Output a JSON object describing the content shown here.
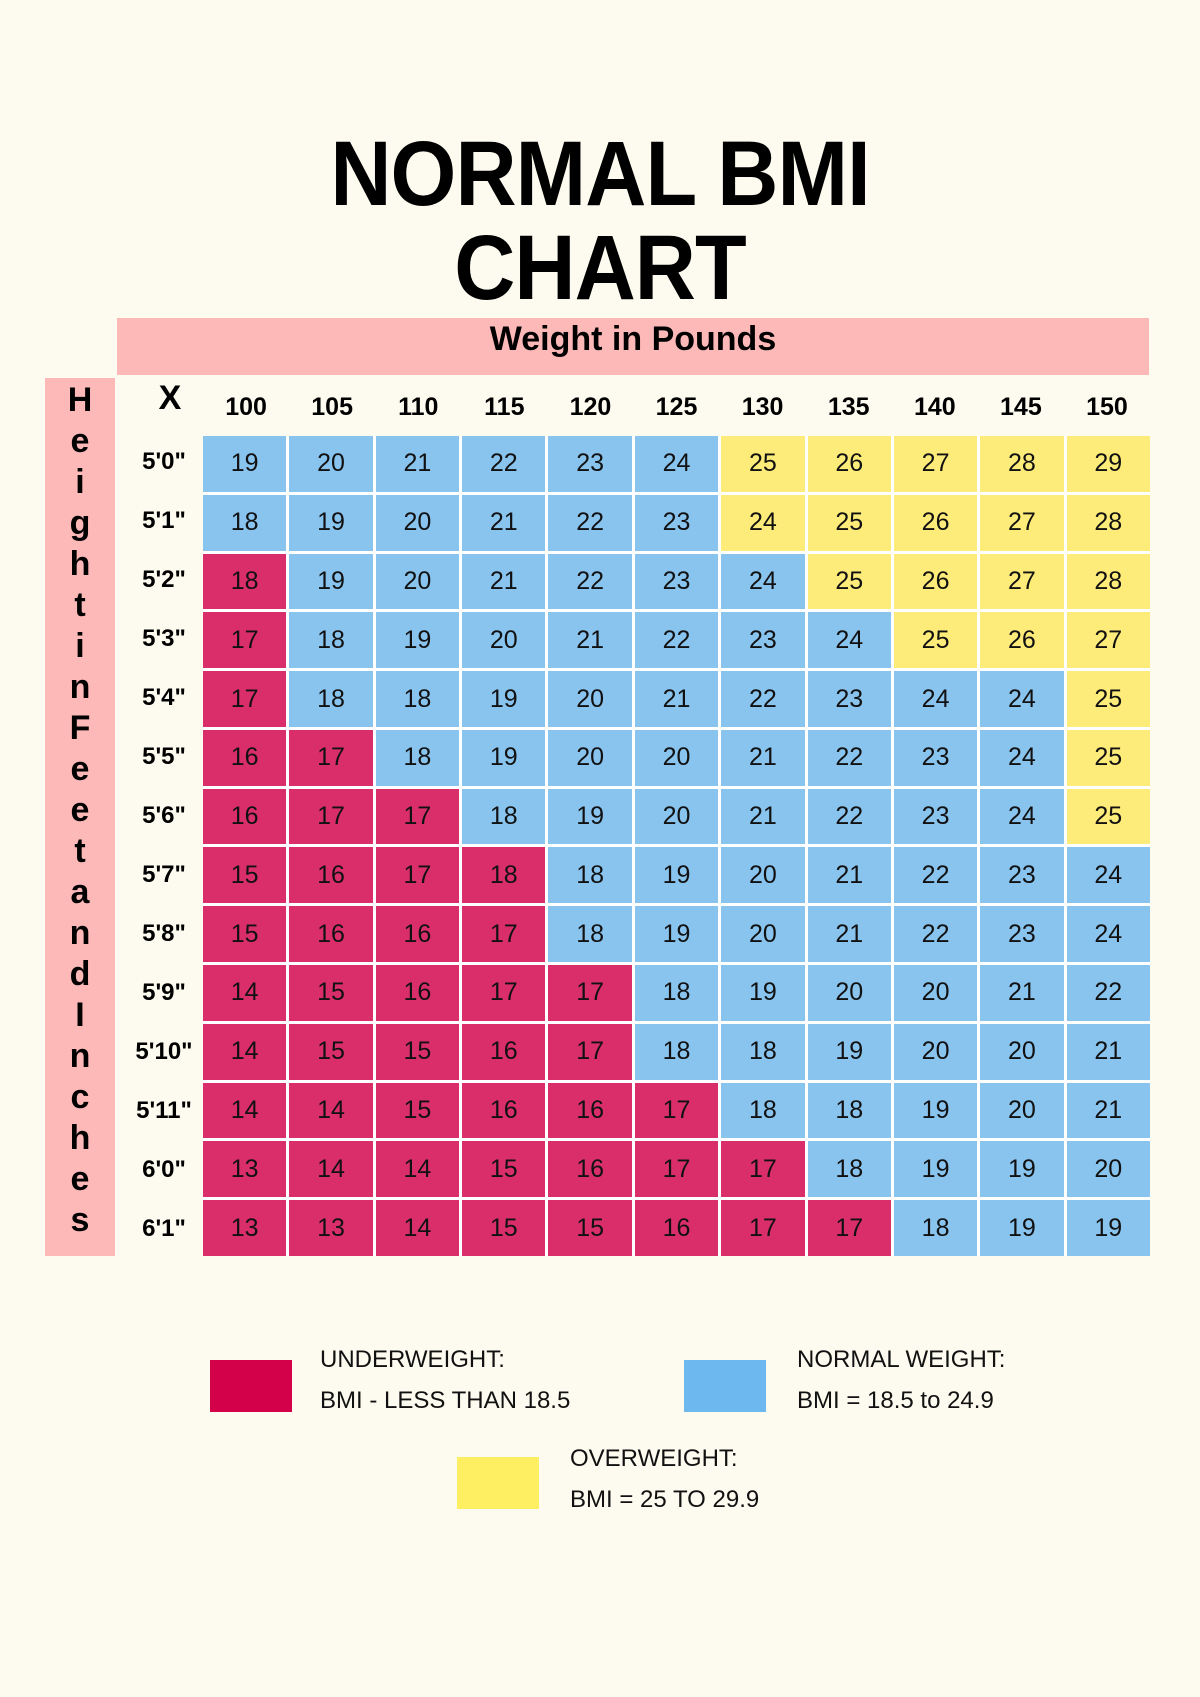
{
  "header": {
    "title_line1": "NORMAL BMI",
    "title_line2": "CHART"
  },
  "axes": {
    "x_title": "Weight in Pounds",
    "y_title": "Height in Feet and Inches",
    "y_title_letters": [
      "H",
      "e",
      "i",
      "g",
      "h",
      "t",
      "i",
      "n",
      "F",
      "e",
      "e",
      "t",
      "a",
      "n",
      "d",
      "I",
      "n",
      "c",
      "h",
      "e",
      "s"
    ],
    "corner_label": "X"
  },
  "legend": [
    {
      "key": "u",
      "label": "UNDERWEIGHT:",
      "range": "BMI - LESS THAN 18.5",
      "color": "#d3004a"
    },
    {
      "key": "n",
      "label": "NORMAL WEIGHT:",
      "range": "BMI = 18.5 to 24.9",
      "color": "#6cb8ef"
    },
    {
      "key": "o",
      "label": "OVERWEIGHT:",
      "range": "BMI = 25 TO 29.9",
      "color": "#fdee62"
    }
  ],
  "colors": {
    "underweight": "#d92e6a",
    "normal": "#89c4ef",
    "overweight": "#fdec7a",
    "banner": "#fdb8b8",
    "background": "#fdfbef"
  },
  "chart_data": {
    "type": "heatmap",
    "title": "NORMAL BMI CHART",
    "xlabel": "Weight in Pounds",
    "ylabel": "Height in Feet and Inches",
    "x": [
      "100",
      "105",
      "110",
      "115",
      "120",
      "125",
      "130",
      "135",
      "140",
      "145",
      "150"
    ],
    "y": [
      "5'0\"",
      "5'1\"",
      "5'2\"",
      "5'3\"",
      "5'4\"",
      "5'5\"",
      "5'6\"",
      "5'7\"",
      "5'8\"",
      "5'9\"",
      "5'10\"",
      "5'11\"",
      "6'0\"",
      "6'1\""
    ],
    "values": [
      [
        19,
        20,
        21,
        22,
        23,
        24,
        25,
        26,
        27,
        28,
        29
      ],
      [
        18,
        19,
        20,
        21,
        22,
        23,
        24,
        25,
        26,
        27,
        28
      ],
      [
        18,
        19,
        20,
        21,
        22,
        23,
        24,
        25,
        26,
        27,
        28
      ],
      [
        17,
        18,
        19,
        20,
        21,
        22,
        23,
        24,
        25,
        26,
        27
      ],
      [
        17,
        18,
        18,
        19,
        20,
        21,
        22,
        23,
        24,
        24,
        25
      ],
      [
        16,
        17,
        18,
        19,
        20,
        20,
        21,
        22,
        23,
        24,
        25
      ],
      [
        16,
        17,
        17,
        18,
        19,
        20,
        21,
        22,
        23,
        24,
        25
      ],
      [
        15,
        16,
        17,
        18,
        18,
        19,
        20,
        21,
        22,
        23,
        24
      ],
      [
        15,
        16,
        16,
        17,
        18,
        19,
        20,
        21,
        22,
        23,
        24
      ],
      [
        14,
        15,
        16,
        17,
        17,
        18,
        19,
        20,
        20,
        21,
        22
      ],
      [
        14,
        15,
        15,
        16,
        17,
        18,
        18,
        19,
        20,
        20,
        21
      ],
      [
        14,
        14,
        15,
        16,
        16,
        17,
        18,
        18,
        19,
        20,
        21
      ],
      [
        13,
        14,
        14,
        15,
        16,
        17,
        17,
        18,
        19,
        19,
        20
      ],
      [
        13,
        13,
        14,
        15,
        15,
        16,
        17,
        17,
        18,
        19,
        19
      ]
    ],
    "categories_grid": [
      [
        "n",
        "n",
        "n",
        "n",
        "n",
        "n",
        "o",
        "o",
        "o",
        "o",
        "o"
      ],
      [
        "n",
        "n",
        "n",
        "n",
        "n",
        "n",
        "o",
        "o",
        "o",
        "o",
        "o"
      ],
      [
        "u",
        "n",
        "n",
        "n",
        "n",
        "n",
        "n",
        "o",
        "o",
        "o",
        "o"
      ],
      [
        "u",
        "n",
        "n",
        "n",
        "n",
        "n",
        "n",
        "n",
        "o",
        "o",
        "o"
      ],
      [
        "u",
        "n",
        "n",
        "n",
        "n",
        "n",
        "n",
        "n",
        "n",
        "n",
        "o"
      ],
      [
        "u",
        "u",
        "n",
        "n",
        "n",
        "n",
        "n",
        "n",
        "n",
        "n",
        "o"
      ],
      [
        "u",
        "u",
        "u",
        "n",
        "n",
        "n",
        "n",
        "n",
        "n",
        "n",
        "o"
      ],
      [
        "u",
        "u",
        "u",
        "u",
        "n",
        "n",
        "n",
        "n",
        "n",
        "n",
        "n"
      ],
      [
        "u",
        "u",
        "u",
        "u",
        "n",
        "n",
        "n",
        "n",
        "n",
        "n",
        "n"
      ],
      [
        "u",
        "u",
        "u",
        "u",
        "u",
        "n",
        "n",
        "n",
        "n",
        "n",
        "n"
      ],
      [
        "u",
        "u",
        "u",
        "u",
        "u",
        "n",
        "n",
        "n",
        "n",
        "n",
        "n"
      ],
      [
        "u",
        "u",
        "u",
        "u",
        "u",
        "u",
        "n",
        "n",
        "n",
        "n",
        "n"
      ],
      [
        "u",
        "u",
        "u",
        "u",
        "u",
        "u",
        "u",
        "n",
        "n",
        "n",
        "n"
      ],
      [
        "u",
        "u",
        "u",
        "u",
        "u",
        "u",
        "u",
        "u",
        "n",
        "n",
        "n"
      ]
    ],
    "legend": [
      "UNDERWEIGHT: BMI - LESS THAN 18.5",
      "NORMAL WEIGHT: BMI = 18.5 to 24.9",
      "OVERWEIGHT: BMI = 25 TO 29.9"
    ],
    "legend_position": "bottom"
  }
}
